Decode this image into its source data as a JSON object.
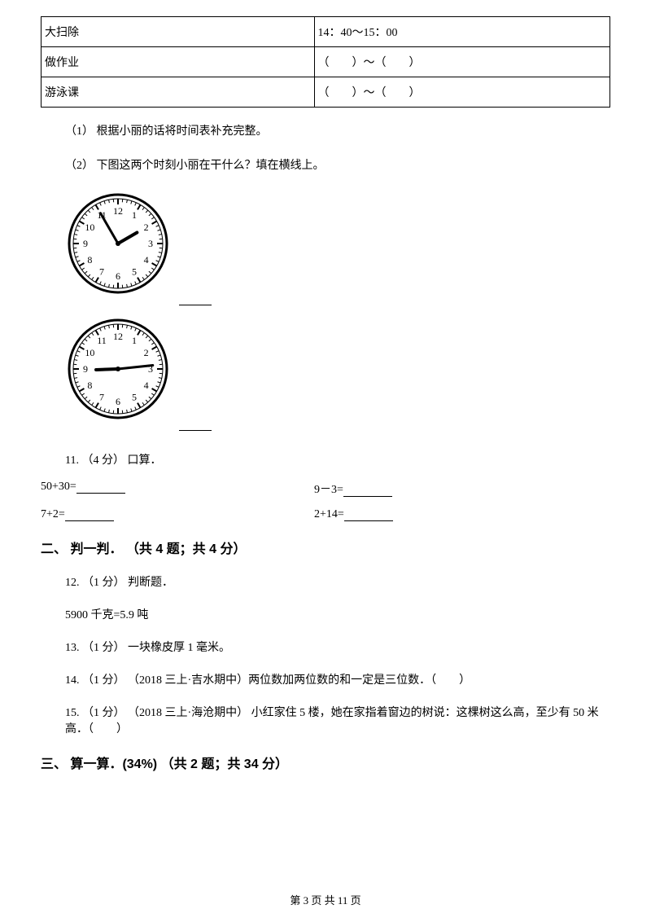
{
  "table": {
    "rows": [
      {
        "activity": "大扫除",
        "time": "14：40～15：00"
      },
      {
        "activity": "做作业",
        "time": "（　　）～（　　）"
      },
      {
        "activity": "游泳课",
        "time": "（　　）～（　　）"
      }
    ]
  },
  "prompts": {
    "p1": "（1） 根据小丽的话将时间表补充完整。",
    "p2": "（2） 下图这两个时刻小丽在干什么？填在横线上。"
  },
  "clock1": {
    "hourAngle": 60,
    "minuteAngle": -30
  },
  "clock2": {
    "hourAngle": -92,
    "minuteAngle": 84
  },
  "q11": {
    "label": "11. （4 分） 口算．",
    "items": [
      {
        "left": "50+30=",
        "right": "9－3="
      },
      {
        "left": "7+2=",
        "right": "2+14="
      }
    ]
  },
  "section2": {
    "title": "二、 判一判． （共 4 题；共 4 分）",
    "q12a": "12. （1 分） 判断题．",
    "q12b": "5900 千克=5.9 吨",
    "q13": "13. （1 分） 一块橡皮厚 1 毫米。",
    "q14": "14. （1 分） （2018 三上·吉水期中）两位数加两位数的和一定是三位数．（　　）",
    "q15": "15. （1 分） （2018 三上·海沧期中） 小红家住 5 楼，她在家指着窗边的树说：这棵树这么高，至少有 50 米高．（　　）"
  },
  "section3": {
    "title": "三、 算一算．(34%) （共 2 题；共 34 分）"
  },
  "footer": "第 3 页 共 11 页"
}
